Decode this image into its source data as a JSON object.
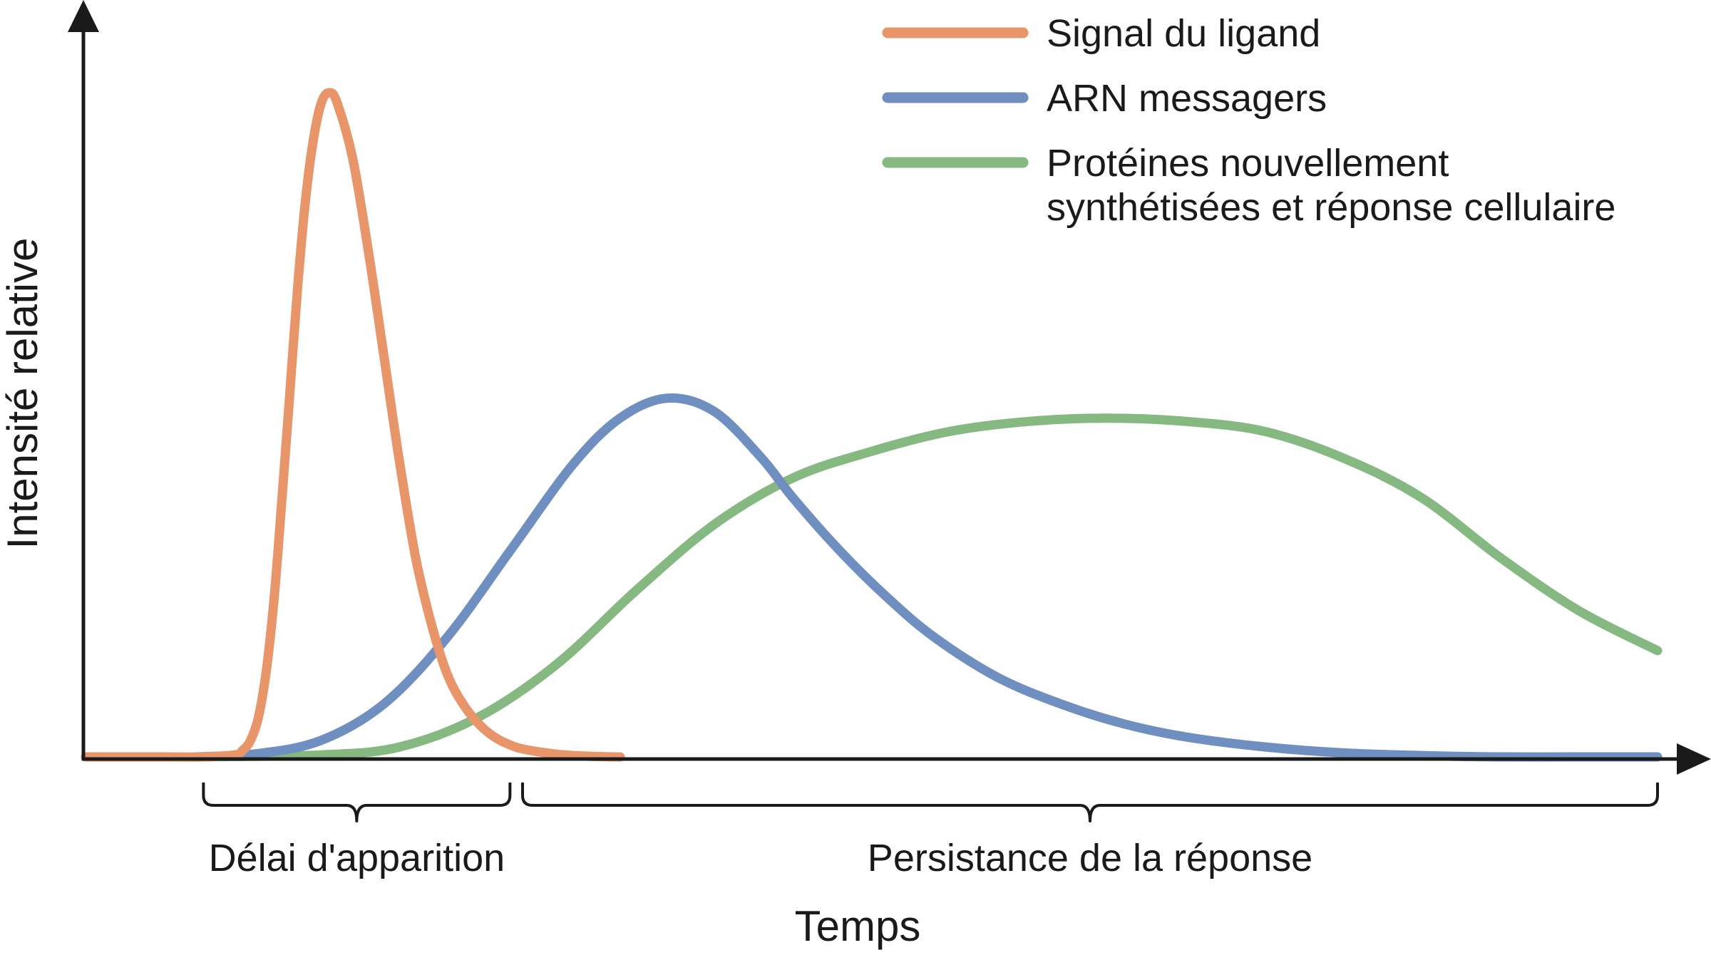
{
  "chart_data": {
    "type": "line",
    "title": "",
    "xlabel": "Temps",
    "ylabel": "Intensité relative",
    "grid": false,
    "legend_position": "top-right",
    "xlim": [
      0,
      1000
    ],
    "ylim": [
      0,
      100
    ],
    "series": [
      {
        "name": "Signal du ligand",
        "color": "#E8956A",
        "x": [
          0,
          50,
          75,
          95,
          100,
          105,
          110,
          115,
          120,
          125,
          130,
          135,
          140,
          145,
          150,
          155,
          160,
          170,
          180,
          190,
          200,
          210,
          220,
          230,
          240,
          250,
          260,
          270,
          280,
          300,
          320,
          340,
          338
        ],
        "y": [
          0,
          0,
          0,
          0.3,
          1,
          2.5,
          6,
          13,
          24,
          39,
          55,
          71,
          84,
          93,
          98.5,
          100,
          98.5,
          90,
          76,
          60,
          44,
          30,
          20,
          12.5,
          8,
          5,
          3,
          1.8,
          1.1,
          0.4,
          0.1,
          0,
          0
        ]
      },
      {
        "name": "ARN messagers",
        "color": "#6F8FC0",
        "x": [
          70,
          110,
          150,
          190,
          230,
          270,
          310,
          340,
          370,
          400,
          430,
          450,
          480,
          510,
          540,
          580,
          620,
          660,
          700,
          750,
          800,
          850,
          900,
          950,
          1000
        ],
        "y": [
          0,
          0.5,
          2.5,
          8,
          18,
          31,
          44,
          51,
          54,
          52,
          45,
          39,
          31,
          24,
          18,
          12,
          8,
          5,
          3,
          1.5,
          0.6,
          0.2,
          0,
          0,
          0
        ]
      },
      {
        "name": "Protéines nouvellement synthétisées et réponse cellulaire",
        "color": "#86B982",
        "x": [
          70,
          150,
          200,
          250,
          300,
          350,
          400,
          450,
          500,
          550,
          600,
          650,
          700,
          750,
          800,
          850,
          900,
          950,
          1000
        ],
        "y": [
          0,
          0.3,
          1.5,
          6,
          14,
          25,
          35,
          42,
          46,
          49,
          50.5,
          51,
          50.5,
          49,
          45,
          39,
          30,
          22,
          16
        ]
      }
    ],
    "annotations": [
      {
        "label": "Délai d'apparition",
        "x_start": 75,
        "x_end": 270
      },
      {
        "label": "Persistance de la réponse",
        "x_start": 278,
        "x_end": 1000
      }
    ]
  }
}
